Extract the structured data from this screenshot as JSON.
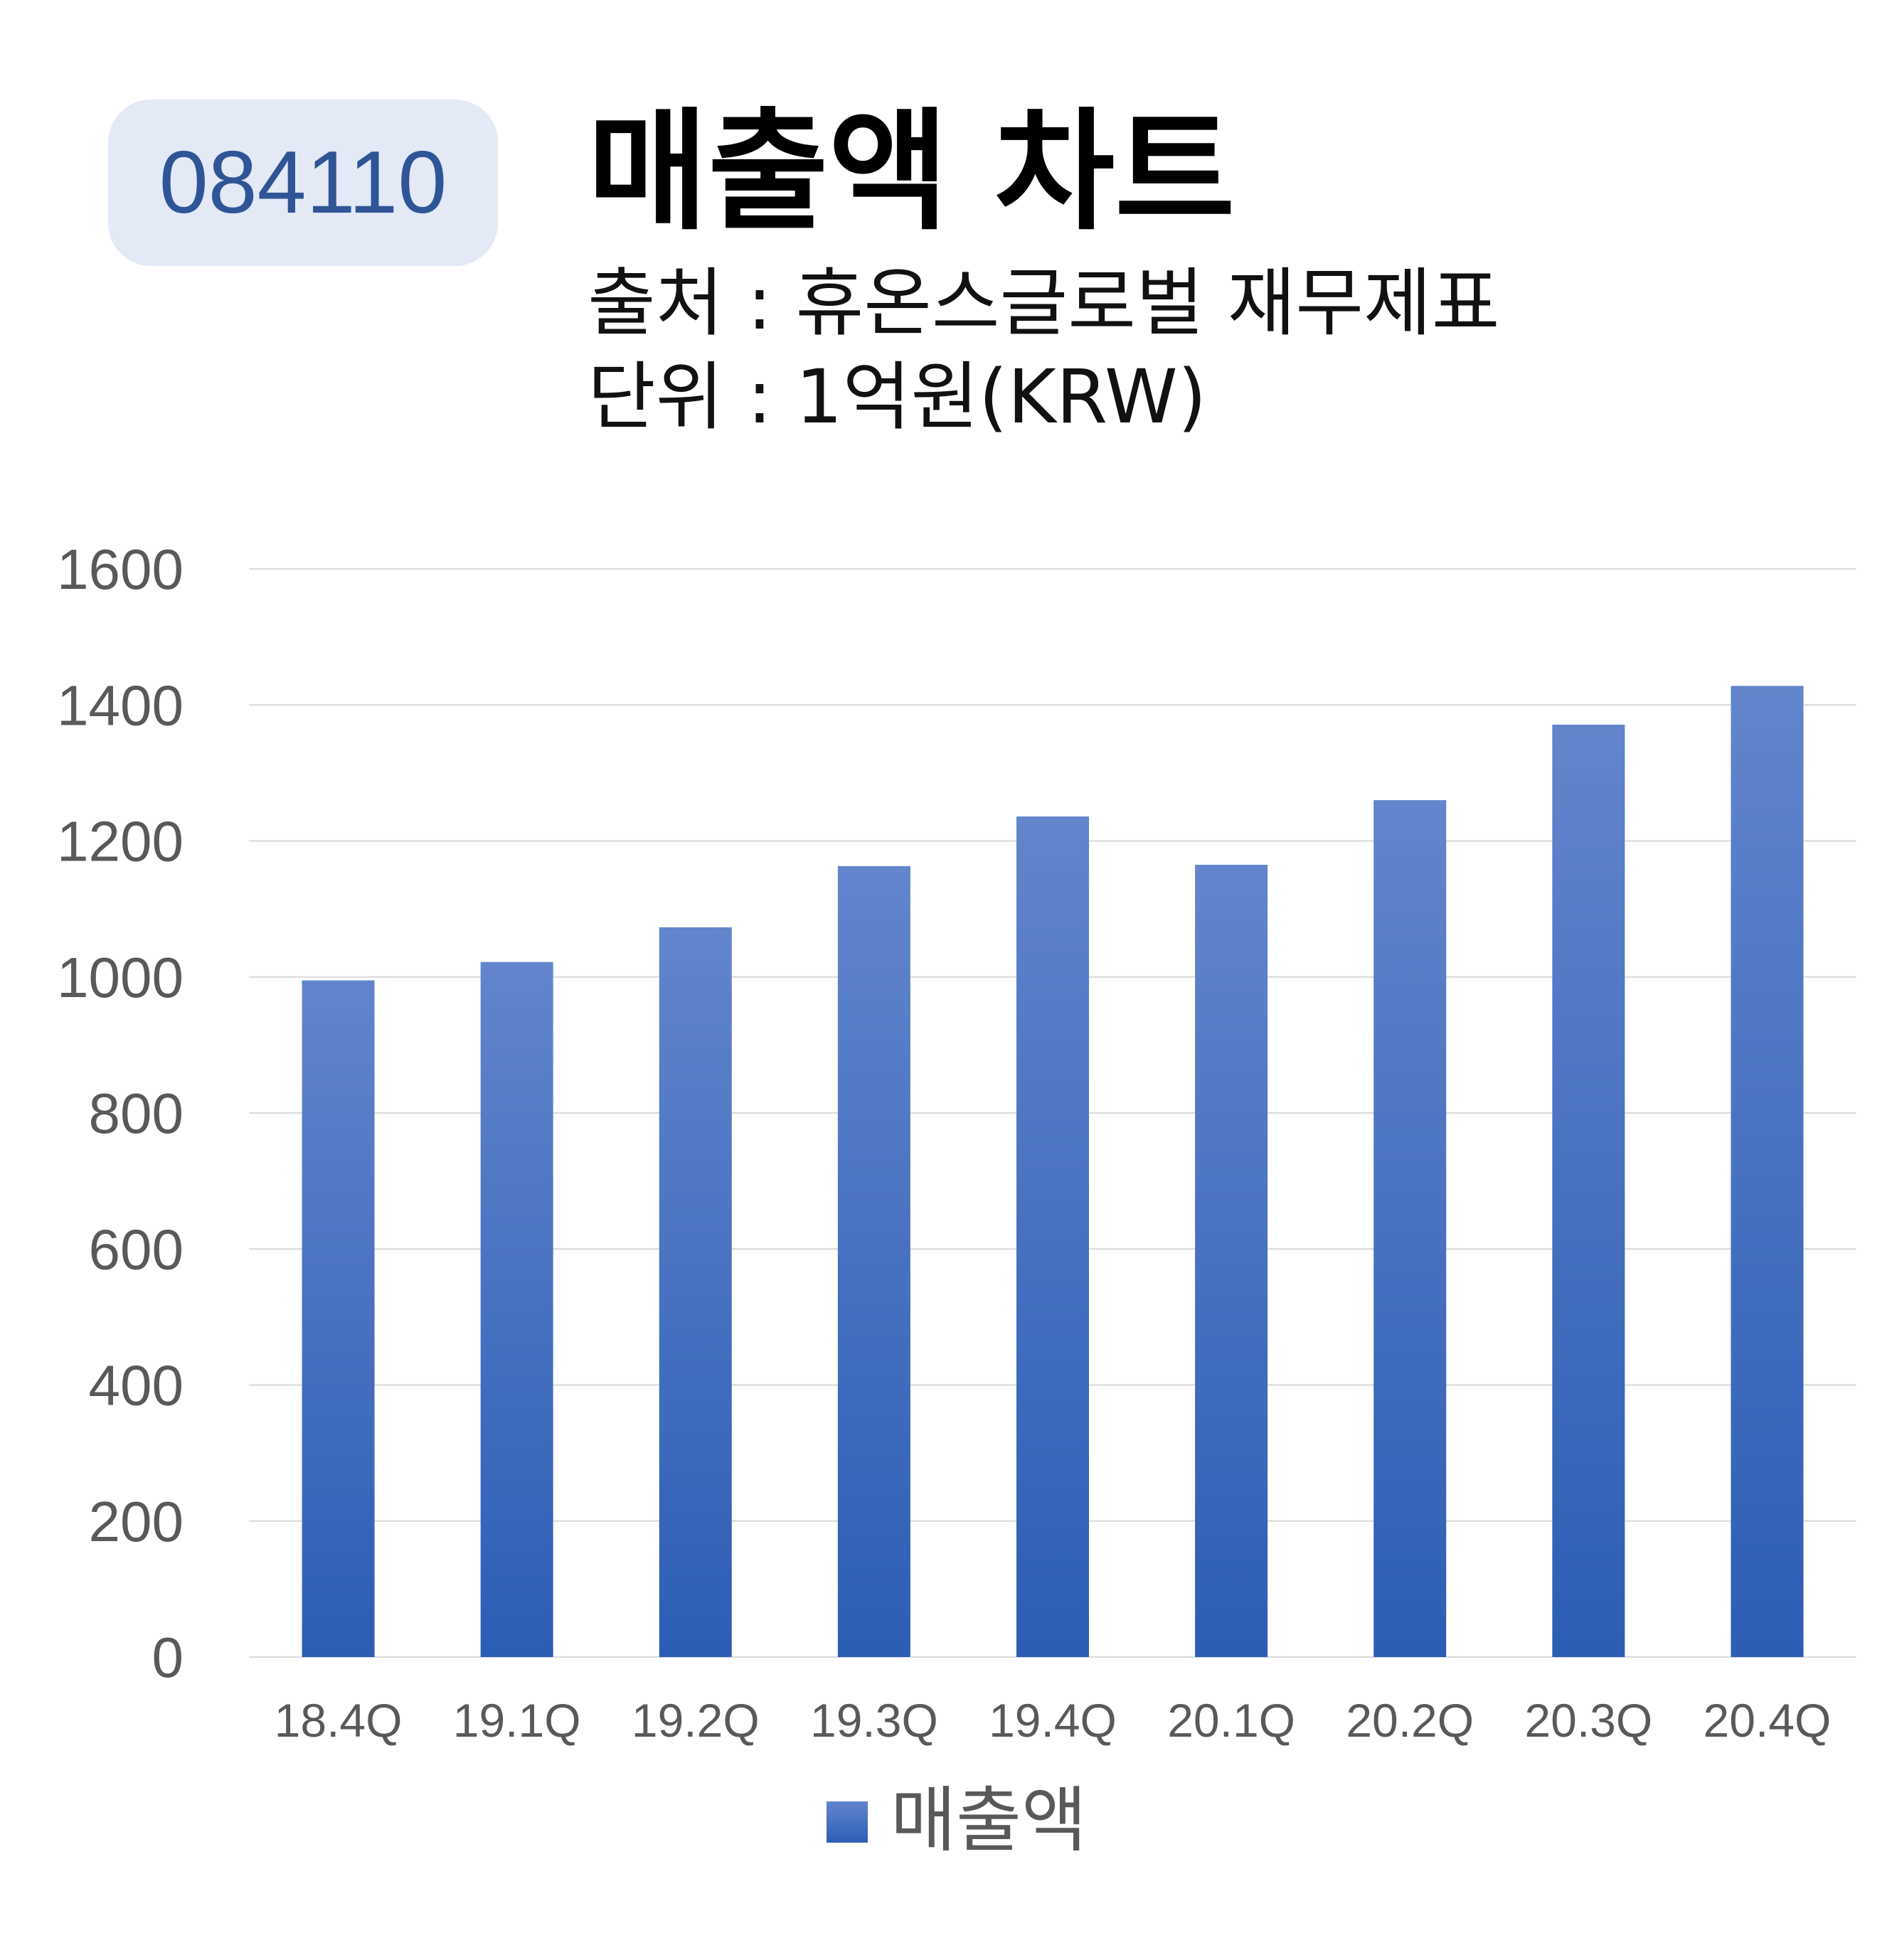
{
  "header": {
    "stock_code": "084110",
    "title": "매출액 차트",
    "source_line": "출처 : 휴온스글로벌 재무제표",
    "unit_line": "단위 : 1억원(KRW)"
  },
  "chart_data": {
    "type": "bar",
    "categories": [
      "18.4Q",
      "19.1Q",
      "19.2Q",
      "19.3Q",
      "19.4Q",
      "20.1Q",
      "20.2Q",
      "20.3Q",
      "20.4Q"
    ],
    "series": [
      {
        "name": "매출액",
        "values": [
          995,
          1022,
          1073,
          1163,
          1236,
          1165,
          1260,
          1371,
          1428
        ]
      }
    ],
    "ylim": [
      0,
      1600
    ],
    "yticks": [
      0,
      200,
      400,
      600,
      800,
      1000,
      1200,
      1400,
      1600
    ],
    "grid": true,
    "legend": "bottom",
    "colors": {
      "bar_top": "#6285cc",
      "bar_bottom": "#2c5db5",
      "grid": "#d9d9d9",
      "axis": "#d9d9d9"
    }
  }
}
